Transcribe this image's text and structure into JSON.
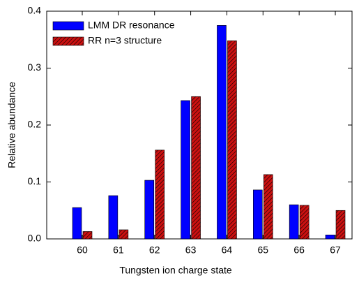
{
  "chart_data": {
    "type": "bar",
    "x_label": "Tungsten ion charge state",
    "y_label": "Relative abundance",
    "categories": [
      "60",
      "61",
      "62",
      "63",
      "64",
      "65",
      "66",
      "67"
    ],
    "series": [
      {
        "name": "LMM DR resonance",
        "color": "#0000ff",
        "values": [
          0.055,
          0.076,
          0.103,
          0.243,
          0.375,
          0.086,
          0.06,
          0.007
        ]
      },
      {
        "name": "RR n=3 structure",
        "color": "#cc1111",
        "hatch": true,
        "values": [
          0.013,
          0.016,
          0.156,
          0.25,
          0.348,
          0.113,
          0.059,
          0.05
        ]
      }
    ],
    "ylim": [
      0,
      0.4
    ],
    "yticks": [
      {
        "value": 0,
        "label": "0.0"
      },
      0.1,
      0.2,
      0.3,
      0.4
    ],
    "legend": "upper left"
  }
}
